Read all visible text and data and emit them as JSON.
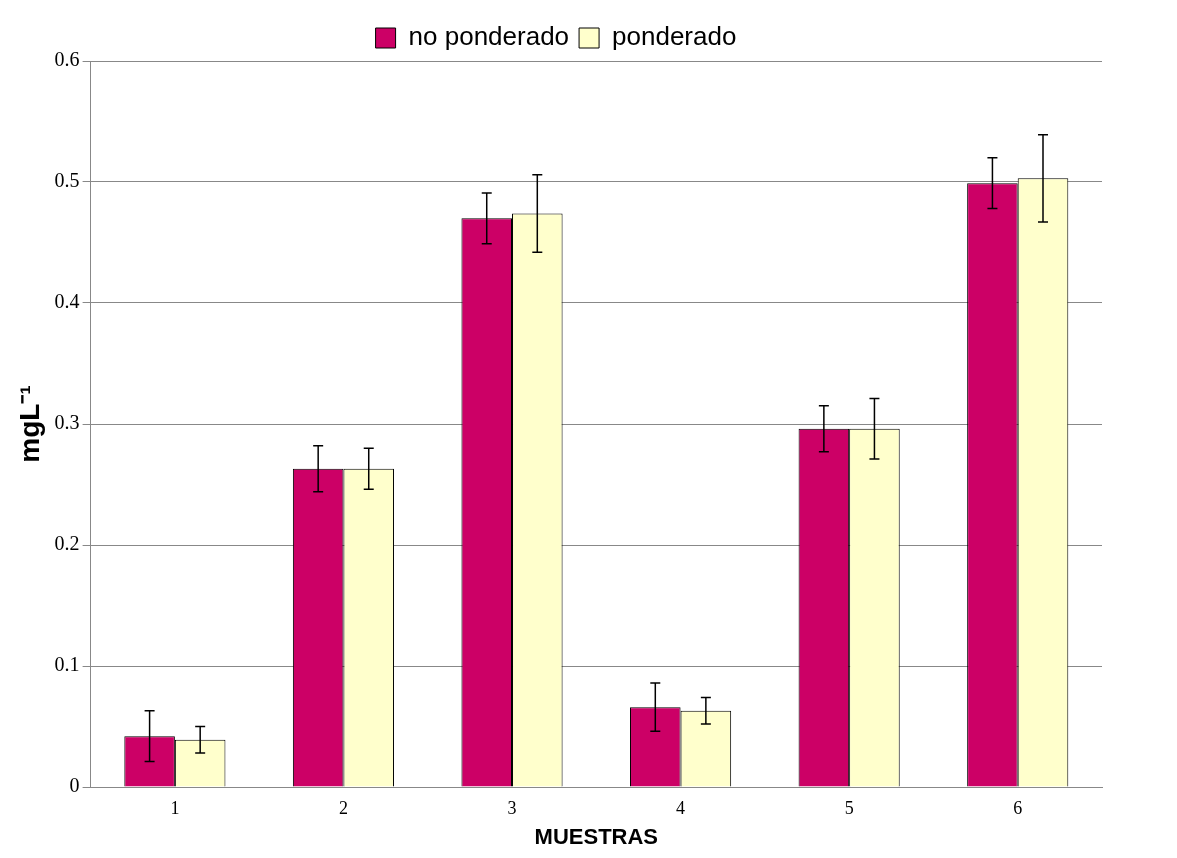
{
  "chart_data": {
    "type": "bar",
    "xlabel": "MUESTRAS",
    "ylabel": "mgL⁻¹",
    "categories": [
      "1",
      "2",
      "3",
      "4",
      "5",
      "6"
    ],
    "series": [
      {
        "name": "no ponderado",
        "color": "#cc0066",
        "values": [
          0.042,
          0.263,
          0.47,
          0.066,
          0.296,
          0.499
        ],
        "errors": [
          0.021,
          0.019,
          0.021,
          0.02,
          0.019,
          0.021
        ]
      },
      {
        "name": "ponderado",
        "color": "#ffffcc",
        "values": [
          0.039,
          0.263,
          0.474,
          0.063,
          0.296,
          0.503
        ],
        "errors": [
          0.011,
          0.017,
          0.032,
          0.011,
          0.025,
          0.036
        ]
      }
    ],
    "ylim": [
      0,
      0.6
    ],
    "yticks": [
      0,
      0.1,
      0.2,
      0.3,
      0.4,
      0.5,
      0.6
    ],
    "grid": "y",
    "legend": "top"
  }
}
